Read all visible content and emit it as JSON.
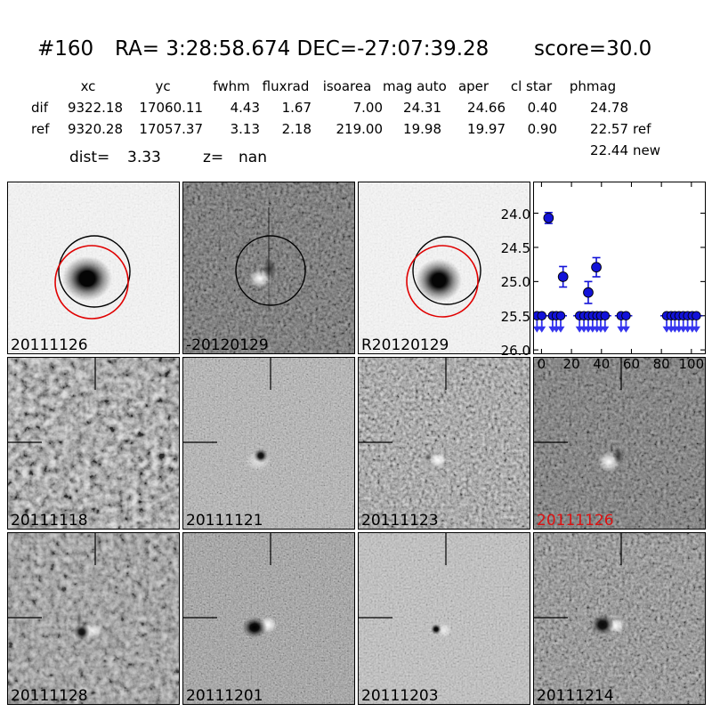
{
  "header": {
    "id": "#160",
    "ra_dec": "RA= 3:28:58.674 DEC=-27:07:39.28",
    "ra": "RA= 3:28:58.674",
    "dec": "DEC=-27:07:39.28",
    "score": "score=30.0"
  },
  "photometry_table": {
    "headers": [
      "xc",
      "yc",
      "fwhm",
      "fluxrad",
      "isoarea",
      "mag auto",
      "aper",
      "cl star",
      "phmag"
    ],
    "rows": [
      {
        "label": "dif",
        "xc": "9322.18",
        "yc": "17060.11",
        "fwhm": "4.43",
        "fluxrad": "1.67",
        "isoarea": "7.00",
        "mag_auto": "24.31",
        "aper": "24.66",
        "cl_star": "0.40",
        "phmag": "24.78",
        "phmag_suffix": ""
      },
      {
        "label": "ref",
        "xc": "9320.28",
        "yc": "17057.37",
        "fwhm": "3.13",
        "fluxrad": "2.18",
        "isoarea": "219.00",
        "mag_auto": "19.98",
        "aper": "19.97",
        "cl_star": "0.90",
        "phmag": "22.57",
        "phmag_suffix": "ref"
      }
    ],
    "extra_row": {
      "phmag": "22.44",
      "phmag_suffix": "new"
    },
    "dist_label": "dist=",
    "dist_value": "3.33",
    "z_label": "z=",
    "z_value": "nan"
  },
  "panels": [
    {
      "label": "20111126",
      "label_color": "#000000"
    },
    {
      "label": "-20120129",
      "label_color": "#000000"
    },
    {
      "label": "R20120129",
      "label_color": "#000000"
    },
    {
      "label": "20111118",
      "label_color": "#000000"
    },
    {
      "label": "20111121",
      "label_color": "#000000"
    },
    {
      "label": "20111123",
      "label_color": "#000000"
    },
    {
      "label": "20111126",
      "label_color": "#dd1111"
    },
    {
      "label": "20111128",
      "label_color": "#000000"
    },
    {
      "label": "20111201",
      "label_color": "#000000"
    },
    {
      "label": "20111203",
      "label_color": "#000000"
    },
    {
      "label": "20111214",
      "label_color": "#000000"
    }
  ],
  "colors": {
    "marker_blue": "#1212d8",
    "arrow_blue": "#3434ee",
    "aperture_black": "#000000",
    "aperture_red": "#e00000",
    "highlight_red": "#dd1111"
  },
  "chart_data": {
    "type": "scatter",
    "title": "",
    "xlabel": "",
    "ylabel": "",
    "xlim": [
      -5,
      109
    ],
    "ylim": [
      23.55,
      26.05
    ],
    "y_axis_inverted_magnitude": true,
    "grid": false,
    "xticks": [
      0,
      20,
      40,
      60,
      80,
      100
    ],
    "yticks": [
      24.0,
      24.5,
      25.0,
      25.5,
      26.0
    ],
    "marker_color": "#1212d8",
    "detections": [
      {
        "x": 4.7,
        "y": 24.07,
        "yerr": 0.08
      },
      {
        "x": 14.4,
        "y": 24.93,
        "yerr": 0.15
      },
      {
        "x": 31.2,
        "y": 25.16,
        "yerr": 0.16
      },
      {
        "x": 36.6,
        "y": 24.79,
        "yerr": 0.14
      }
    ],
    "upper_limits": {
      "y": 25.5,
      "x": [
        -3,
        0.2,
        7.4,
        9.9,
        12.8,
        25.4,
        28.3,
        31.2,
        34.1,
        37.0,
        39.5,
        42.4,
        53.1,
        56.4,
        83.5,
        86.5,
        89.0,
        91.7,
        94.6,
        97.5,
        100.6,
        103.3
      ]
    }
  }
}
